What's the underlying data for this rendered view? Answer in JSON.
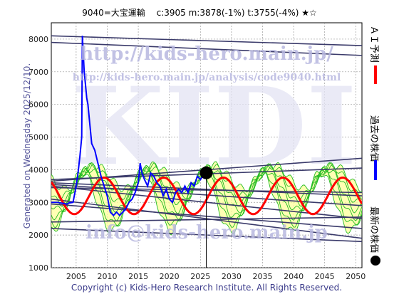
{
  "header": {
    "title": "9040=大宝運輸　 c:3905  m:3878(-1%)  t:3755(-4%)  ★☆"
  },
  "side_labels": {
    "left_generated": "Generated on Wednesday 2025/12/10.",
    "ai_forecast": "ＡＩ予測",
    "past_price": "過去の株価",
    "latest_price": "最新の株価"
  },
  "watermarks": {
    "url1": "http://kids-hero.main.jp/",
    "url2": "http://kids-hero.main.jp/analysis/code9040.html",
    "big": "KIDI",
    "email": "info@kids-hero.main.jp"
  },
  "footer": {
    "copyright": "Copyright (c) Kids-Hero Research Institute. All Rights Reserved."
  },
  "colors": {
    "ai_forecast": "#ff0000",
    "past_price": "#0000ff",
    "latest_price": "#000000",
    "band_fill": "#ffff99",
    "band_lines": "#22bb22",
    "trend_lines": "#3a3a6a",
    "watermark": "#b8b8e0"
  },
  "chart_data": {
    "type": "line",
    "xlim": [
      2001,
      2051
    ],
    "ylim": [
      1000,
      8500
    ],
    "x_ticks": [
      2005,
      2010,
      2015,
      2020,
      2025,
      2030,
      2035,
      2040,
      2045,
      2050
    ],
    "y_ticks": [
      1000,
      2000,
      3000,
      4000,
      5000,
      6000,
      7000,
      8000
    ],
    "grid": true,
    "latest_point": {
      "x": 2025.95,
      "y": 3905
    },
    "past_price": {
      "name": "過去の株価",
      "points": [
        [
          2001.0,
          3000
        ],
        [
          2002.0,
          3000
        ],
        [
          2003.5,
          2950
        ],
        [
          2003.8,
          2980
        ],
        [
          2004.5,
          3000
        ],
        [
          2005.0,
          3500
        ],
        [
          2005.3,
          3900
        ],
        [
          2005.6,
          4400
        ],
        [
          2005.9,
          5000
        ],
        [
          2006.0,
          8100
        ],
        [
          2006.3,
          7000
        ],
        [
          2006.5,
          6600
        ],
        [
          2006.7,
          6200
        ],
        [
          2006.9,
          6000
        ],
        [
          2007.5,
          4800
        ],
        [
          2008.0,
          4600
        ],
        [
          2008.5,
          4200
        ],
        [
          2009.0,
          3800
        ],
        [
          2009.5,
          3500
        ],
        [
          2010.0,
          3200
        ],
        [
          2010.5,
          2700
        ],
        [
          2011.0,
          2600
        ],
        [
          2011.5,
          2700
        ],
        [
          2012.0,
          2600
        ],
        [
          2012.5,
          2700
        ],
        [
          2013.0,
          2800
        ],
        [
          2013.5,
          3000
        ],
        [
          2014.0,
          3100
        ],
        [
          2014.5,
          3300
        ],
        [
          2015.0,
          3600
        ],
        [
          2015.3,
          4200
        ],
        [
          2015.6,
          3900
        ],
        [
          2016.0,
          3700
        ],
        [
          2016.5,
          3500
        ],
        [
          2017.0,
          3900
        ],
        [
          2017.5,
          3800
        ],
        [
          2018.0,
          3600
        ],
        [
          2018.5,
          3500
        ],
        [
          2019.0,
          3200
        ],
        [
          2019.5,
          3400
        ],
        [
          2020.0,
          3100
        ],
        [
          2020.5,
          3000
        ],
        [
          2021.0,
          3300
        ],
        [
          2021.5,
          3400
        ],
        [
          2022.0,
          3300
        ],
        [
          2022.5,
          3500
        ],
        [
          2023.0,
          3300
        ],
        [
          2023.5,
          3600
        ],
        [
          2024.0,
          3500
        ],
        [
          2024.5,
          3800
        ],
        [
          2025.0,
          3700
        ],
        [
          2025.5,
          3850
        ],
        [
          2025.95,
          3905
        ]
      ]
    },
    "ai_forecast": {
      "name": "ＡＩ予測",
      "center": 3200,
      "amplitude": 560,
      "period_years": 9.6,
      "phase_peak_year": 2009.5,
      "start_year": 2001,
      "end_year": 2051
    },
    "bands": {
      "count": 7,
      "center": 3400,
      "period_years": 9.6,
      "phase_peak_year": 2007.0,
      "base_amplitude": 900,
      "spread": 550
    },
    "trend_lines": [
      [
        [
          2001,
          8100
        ],
        [
          2051,
          7800
        ]
      ],
      [
        [
          2001,
          7900
        ],
        [
          2051,
          7500
        ]
      ],
      [
        [
          2001,
          3650
        ],
        [
          2051,
          4350
        ]
      ],
      [
        [
          2001,
          3700
        ],
        [
          2051,
          4050
        ]
      ],
      [
        [
          2001,
          3450
        ],
        [
          2051,
          3300
        ]
      ],
      [
        [
          2001,
          3600
        ],
        [
          2051,
          3200
        ]
      ],
      [
        [
          2001,
          3550
        ],
        [
          2051,
          2900
        ]
      ],
      [
        [
          2001,
          3500
        ],
        [
          2051,
          2500
        ]
      ],
      [
        [
          2001,
          2950
        ],
        [
          2051,
          2200
        ]
      ],
      [
        [
          2001,
          2400
        ],
        [
          2051,
          2550
        ]
      ],
      [
        [
          2001,
          2200
        ],
        [
          2051,
          1800
        ]
      ],
      [
        [
          2001,
          3100
        ],
        [
          2051,
          1900
        ]
      ]
    ]
  }
}
